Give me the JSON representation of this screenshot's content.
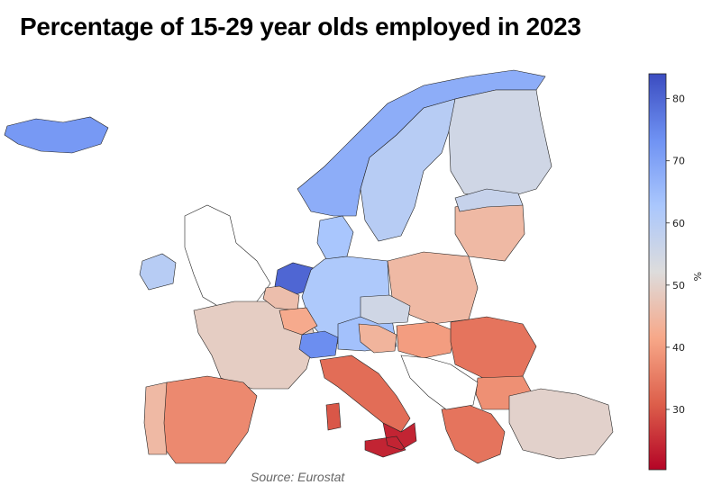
{
  "title": "Percentage of 15-29 year olds employed in 2023",
  "source": "Source: Eurostat",
  "colorbar": {
    "label": "%",
    "min": 20.3,
    "max": 84,
    "ticks": [
      "30",
      "40",
      "50",
      "60",
      "70",
      "80"
    ],
    "tick_values": [
      30,
      40,
      50,
      60,
      70,
      80
    ],
    "colors": [
      "#b40426",
      "#dd5f4b",
      "#f7a889",
      "#dddcdc",
      "#aac7fd",
      "#6f92f3",
      "#3b4cc0"
    ]
  },
  "map_data": {
    "type": "choropleth",
    "unit": "%",
    "no_data_color": "#ffffff",
    "regions": [
      {
        "id": "r1",
        "value": 72
      },
      {
        "id": "r2",
        "value": 68
      },
      {
        "id": "r3",
        "value": 60
      },
      {
        "id": "r4",
        "value": 55
      },
      {
        "id": "r5",
        "value": 60
      },
      {
        "id": "r6",
        "value": null
      },
      {
        "id": "r7",
        "value": 80
      },
      {
        "id": "r8",
        "value": 63
      },
      {
        "id": "r9",
        "value": 62
      },
      {
        "id": "r10",
        "value": 45
      },
      {
        "id": "r11",
        "value": 45
      },
      {
        "id": "r12",
        "value": 49
      },
      {
        "id": "r13",
        "value": 37
      },
      {
        "id": "r14",
        "value": 45
      },
      {
        "id": "r15",
        "value": 33
      },
      {
        "id": "r16",
        "value": 24
      },
      {
        "id": "r17",
        "value": 64
      },
      {
        "id": "r18",
        "value": 74
      },
      {
        "id": "r19",
        "value": 55
      },
      {
        "id": "r20",
        "value": 40
      },
      {
        "id": "r21",
        "value": 34
      },
      {
        "id": "r22",
        "value": 38
      },
      {
        "id": "r23",
        "value": 34
      },
      {
        "id": "r24",
        "value": 50
      },
      {
        "id": "r25",
        "value": null
      },
      {
        "id": "r26",
        "value": 46
      },
      {
        "id": "r27",
        "value": 44
      },
      {
        "id": "r28",
        "value": 30
      },
      {
        "id": "r29",
        "value": 57
      },
      {
        "id": "r30",
        "value": 42
      }
    ]
  }
}
